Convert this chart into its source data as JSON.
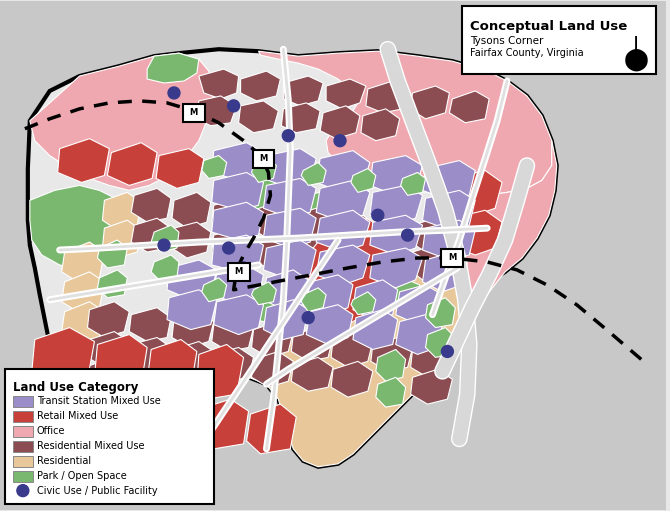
{
  "title_main": "Conceptual Land Use",
  "title_sub1": "Tysons Corner",
  "title_sub2": "Fairfax County, Virginia",
  "legend_title": "Land Use Category",
  "legend_items": [
    {
      "label": "Transit Station Mixed Use",
      "color": "#9b8dc8",
      "type": "rect"
    },
    {
      "label": "Retail Mixed Use",
      "color": "#c8403a",
      "type": "rect"
    },
    {
      "label": "Office",
      "color": "#f0a8b0",
      "type": "rect"
    },
    {
      "label": "Residential Mixed Use",
      "color": "#8b4c52",
      "type": "rect"
    },
    {
      "label": "Residential",
      "color": "#e8c89a",
      "type": "rect"
    },
    {
      "label": "Park / Open Space",
      "color": "#7ab870",
      "type": "rect"
    },
    {
      "label": "Civic Use / Public Facility",
      "color": "#3a3a8c",
      "type": "circle"
    }
  ],
  "map_bg_color": "#d8d8d8",
  "outside_bg_color": "#c8c8c8",
  "background_color": "#e8e8e8"
}
